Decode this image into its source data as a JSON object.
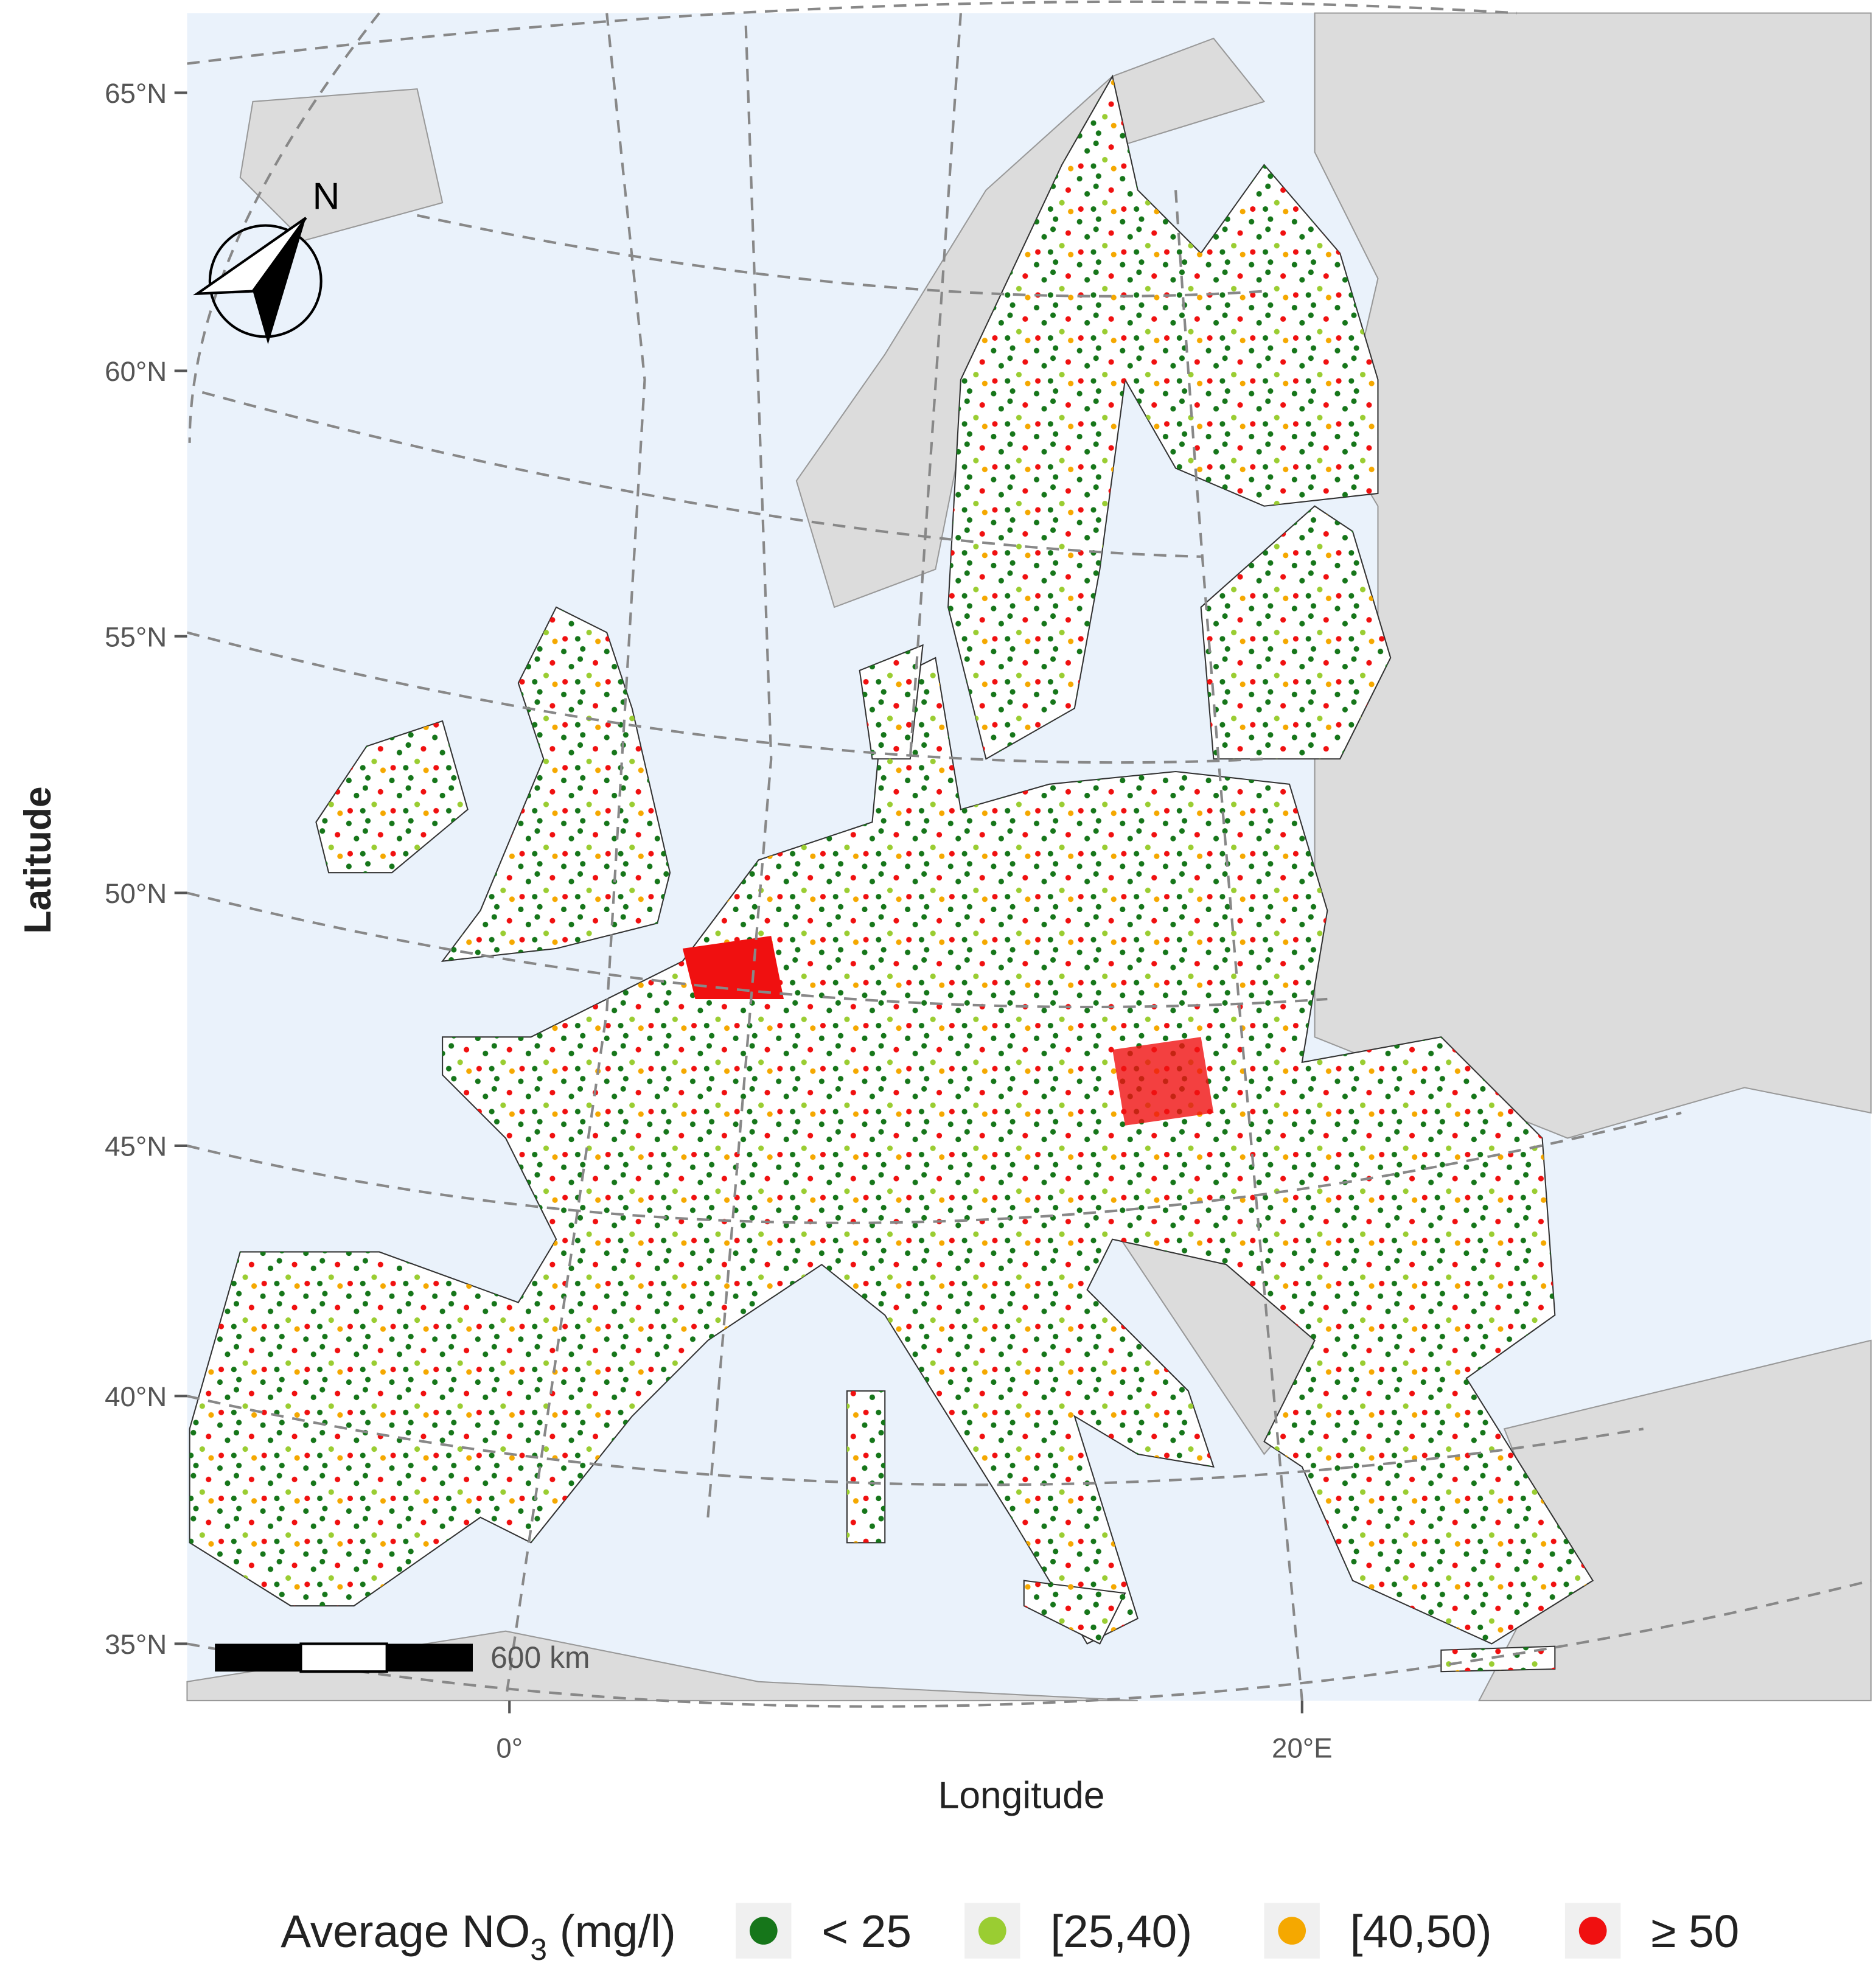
{
  "axes": {
    "x_label": "Longitude",
    "y_label": "Latitude",
    "x_ticks": [
      "0°",
      "20°E"
    ],
    "y_ticks": [
      "65°N",
      "60°N",
      "55°N",
      "50°N",
      "45°N",
      "40°N",
      "35°N"
    ]
  },
  "north_arrow": "N",
  "scale_bar": "600 km",
  "legend": {
    "title": "Average NO",
    "title_subscript": "3",
    "title_unit": "(mg/l)",
    "items": [
      {
        "label": "< 25",
        "color": "#16761a"
      },
      {
        "label": "[25,40)",
        "color": "#9acd32"
      },
      {
        "label": "[40,50)",
        "color": "#f5a800"
      },
      {
        "label": "≥ 50",
        "color": "#f01010"
      }
    ]
  }
}
